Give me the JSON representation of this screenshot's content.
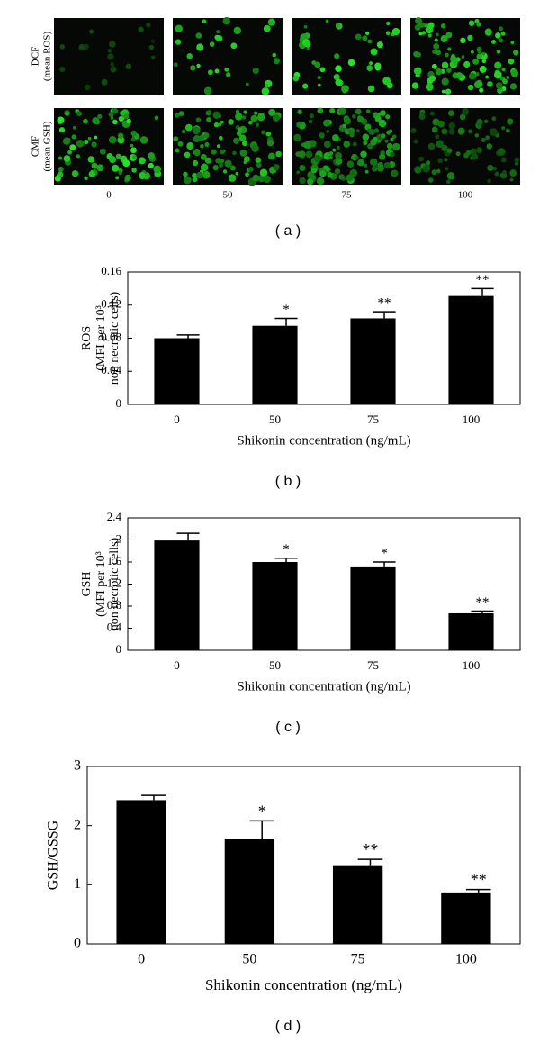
{
  "panel_a": {
    "row_labels": [
      [
        "DCF",
        "(mean ROS)"
      ],
      [
        "CMF",
        "(mean GSH)"
      ]
    ],
    "column_labels": [
      "0",
      "50",
      "75",
      "100"
    ],
    "panel_label": "( a )"
  },
  "chart_data": [
    {
      "type": "bar",
      "ylabel": [
        "ROS",
        "(MFI per 10³",
        "non necrotic cells)"
      ],
      "xlabel": "Shikonin concentration (ng/mL)",
      "categories": [
        "0",
        "50",
        "75",
        "100"
      ],
      "values": [
        0.08,
        0.095,
        0.104,
        0.131
      ],
      "errors": [
        0.004,
        0.009,
        0.008,
        0.009
      ],
      "significance": [
        null,
        "*",
        "**",
        "**"
      ],
      "color": "#000000",
      "ylim": [
        0,
        0.16
      ],
      "yticks": [
        0,
        0.04,
        0.08,
        0.12,
        0.16
      ],
      "panel_label": "( b )"
    },
    {
      "type": "bar",
      "ylabel": [
        "GSH",
        "(MFI per 10³",
        "non necrotic cells)"
      ],
      "xlabel": "Shikonin concentration (ng/mL)",
      "categories": [
        "0",
        "50",
        "75",
        "100"
      ],
      "values": [
        1.99,
        1.6,
        1.52,
        0.67
      ],
      "errors": [
        0.13,
        0.07,
        0.08,
        0.04
      ],
      "significance": [
        null,
        "*",
        "*",
        "**"
      ],
      "color": "#000000",
      "ylim": [
        0,
        2.4
      ],
      "yticks": [
        0,
        0.4,
        0.8,
        1.2,
        1.6,
        2,
        2.4
      ],
      "panel_label": "( c )"
    },
    {
      "type": "bar",
      "ylabel": [
        "GSH/GSSG"
      ],
      "xlabel": "Shikonin concentration (ng/mL)",
      "categories": [
        "0",
        "50",
        "75",
        "100"
      ],
      "values": [
        2.43,
        1.78,
        1.33,
        0.87
      ],
      "errors": [
        0.08,
        0.3,
        0.1,
        0.05
      ],
      "significance": [
        null,
        "*",
        "**",
        "**"
      ],
      "color": "#000000",
      "ylim": [
        0,
        3
      ],
      "yticks": [
        0,
        1,
        2,
        3
      ],
      "panel_label": "( d )"
    }
  ]
}
